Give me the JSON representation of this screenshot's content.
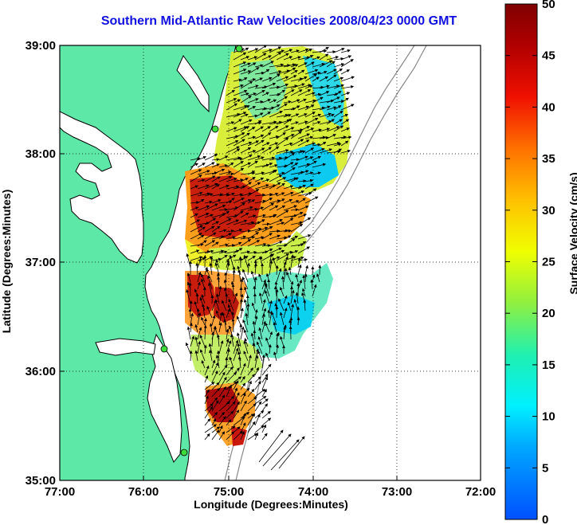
{
  "title": "Southern Mid-Atlantic Raw Velocities 2008/04/23 0000 GMT",
  "x_axis_label": "Longitude (Degrees:Minutes)",
  "y_axis_label": "Latitude (Degrees:Minutes)",
  "x_ticks": [
    "77:00",
    "76:00",
    "75:00",
    "74:00",
    "73:00",
    "72:00"
  ],
  "y_ticks": [
    "39:00",
    "38:00",
    "37:00",
    "36:00",
    "35:00"
  ],
  "colorbar": {
    "label": "Surface Velocity (cm/s)",
    "ticks": [
      "50",
      "45",
      "40",
      "35",
      "30",
      "25",
      "20",
      "15",
      "10",
      "5",
      "0"
    ],
    "range": [
      0,
      50
    ]
  },
  "colors": {
    "land": "#5ee8a8",
    "title": "#1010e0",
    "station": "#3ddc3d"
  }
}
